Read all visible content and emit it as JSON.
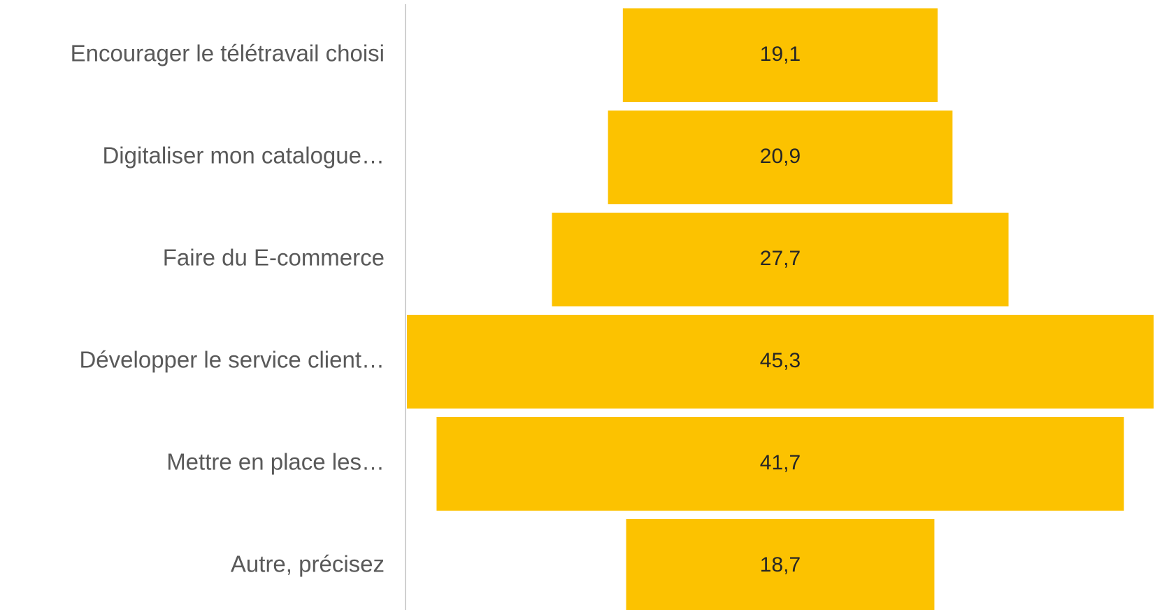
{
  "chart_data": {
    "type": "funnel",
    "categories": [
      "Encourager le télétravail choisi",
      "Digitaliser mon catalogue…",
      "Faire du E-commerce",
      "Développer le service client…",
      "Mettre en place les…",
      "Autre, précisez"
    ],
    "values": [
      19.1,
      20.9,
      27.7,
      45.3,
      41.7,
      18.7
    ],
    "value_labels": [
      "19,1",
      "20,9",
      "27,7",
      "45,3",
      "41,7",
      "18,7"
    ],
    "color": "#fcc200"
  }
}
